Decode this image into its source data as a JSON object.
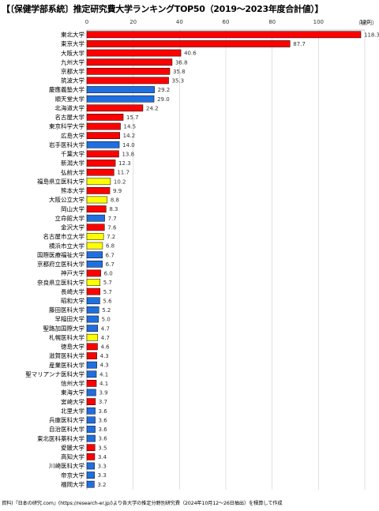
{
  "title": "【〔保健学部系統〕推定研究費大学ランキングTOP50（2019～2023年度合計値）】",
  "unit_label": "（億円）",
  "source": "資料)『日本の研究.com』(https://research-er.jp/)より各大学の推定分野別研究費（2024年10月12～26日抽出）を積算して作成",
  "colors": {
    "red": "#ff0000",
    "blue": "#1f6fe0",
    "yellow": "#ffff00",
    "grid": "#cccccc"
  },
  "chart_data": {
    "type": "bar",
    "orientation": "horizontal",
    "title": "【〔保健学部系統〕推定研究費大学ランキングTOP50（2019～2023年度合計値）】",
    "xlim": [
      0,
      120
    ],
    "xticks": [
      0,
      20,
      40,
      60,
      80,
      100,
      120
    ],
    "grid": true,
    "categories": [
      "東北大学",
      "東京大学",
      "大阪大学",
      "九州大学",
      "京都大学",
      "筑波大学",
      "慶應義塾大学",
      "順天堂大学",
      "北海道大学",
      "名古屋大学",
      "東京科学大学",
      "広島大学",
      "岩手医科大学",
      "千葉大学",
      "新潟大学",
      "弘前大学",
      "福島県立医科大学",
      "熊本大学",
      "大阪公立大学",
      "岡山大学",
      "立命館大学",
      "金沢大学",
      "名古屋市立大学",
      "横浜市立大学",
      "国際医療福祉大学",
      "京都府立医科大学",
      "神戸大学",
      "奈良県立医科大学",
      "長崎大学",
      "昭和大学",
      "藤田医科大学",
      "早稲田大学",
      "聖路加国際大学",
      "札幌医科大学",
      "徳島大学",
      "滋賀医科大学",
      "産業医科大学",
      "聖マリアンナ医科大学",
      "信州大学",
      "東海大学",
      "宮崎大学",
      "北里大学",
      "兵庫医科大学",
      "自治医科大学",
      "東北医科薬科大学",
      "愛媛大学",
      "高知大学",
      "川崎医科大学",
      "帝京大学",
      "福岡大学"
    ],
    "values": [
      118.3,
      87.7,
      40.6,
      36.8,
      35.8,
      35.3,
      29.2,
      29.0,
      24.2,
      15.7,
      14.5,
      14.2,
      14.0,
      13.8,
      12.3,
      11.7,
      10.2,
      9.9,
      8.8,
      8.3,
      7.7,
      7.6,
      7.2,
      6.8,
      6.7,
      6.7,
      6.0,
      5.7,
      5.7,
      5.6,
      5.2,
      5.0,
      4.7,
      4.7,
      4.6,
      4.3,
      4.3,
      4.1,
      4.1,
      3.9,
      3.7,
      3.6,
      3.6,
      3.6,
      3.6,
      3.5,
      3.4,
      3.3,
      3.3,
      3.2
    ],
    "value_labels": [
      "118.3",
      "87.7",
      "40.6",
      "36.8",
      "35.8",
      "35.3",
      "29.2",
      "29.0",
      "24.2",
      "15.7",
      "14.5",
      "14.2",
      "14.0",
      "13.8",
      "12.3",
      "11.7",
      "10.2",
      "9.9",
      "8.8",
      "8.3",
      "7.7",
      "7.6",
      "7.2",
      "6.8",
      "6.7",
      "6.7",
      "6.0",
      "5.7",
      "5.7",
      "5.6",
      "5.2",
      "5.0",
      "4.7",
      "4.7",
      "4.6",
      "4.3",
      "4.3",
      "4.1",
      "4.1",
      "3.9",
      "3.7",
      "3.6",
      "3.6",
      "3.6",
      "3.6",
      "3.5",
      "3.4",
      "3.3",
      "3.3",
      "3.2"
    ],
    "bar_colors": [
      "red",
      "red",
      "red",
      "red",
      "red",
      "red",
      "blue",
      "blue",
      "red",
      "red",
      "red",
      "red",
      "blue",
      "red",
      "red",
      "red",
      "yellow",
      "red",
      "yellow",
      "red",
      "blue",
      "red",
      "yellow",
      "yellow",
      "blue",
      "blue",
      "red",
      "yellow",
      "red",
      "blue",
      "blue",
      "blue",
      "blue",
      "yellow",
      "red",
      "red",
      "blue",
      "blue",
      "red",
      "blue",
      "red",
      "blue",
      "blue",
      "blue",
      "blue",
      "red",
      "red",
      "blue",
      "blue",
      "blue"
    ]
  }
}
